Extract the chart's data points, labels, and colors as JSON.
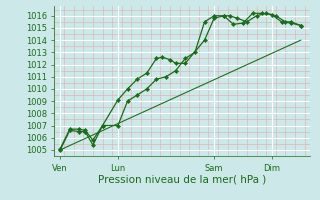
{
  "xlabel": "Pression niveau de la mer( hPa )",
  "bg_color": "#cce8e8",
  "plot_bg_color": "#cce8e8",
  "major_grid_color": "#ffffff",
  "minor_grid_color": "#ddb8b8",
  "line_color": "#1a6b1a",
  "ylim": [
    1004.5,
    1016.8
  ],
  "yticks": [
    1005,
    1006,
    1007,
    1008,
    1009,
    1010,
    1011,
    1012,
    1013,
    1014,
    1015,
    1016
  ],
  "xtick_labels": [
    "Ven",
    "Lun",
    "Sam",
    "Dim"
  ],
  "xtick_positions": [
    0,
    3,
    8,
    11
  ],
  "xlim": [
    -0.3,
    13.0
  ],
  "series1_x": [
    0,
    0.5,
    1.0,
    1.3,
    1.7,
    2.2,
    3.0,
    3.5,
    4.0,
    4.5,
    5.0,
    5.3,
    5.7,
    6.0,
    6.5,
    7.5,
    8.0,
    8.5,
    8.8,
    9.2,
    9.7,
    10.2,
    10.7,
    11.2,
    11.7,
    12.0,
    12.5
  ],
  "series1_y": [
    1005.1,
    1006.7,
    1006.7,
    1006.6,
    1005.8,
    1007.0,
    1009.1,
    1010.0,
    1010.8,
    1011.3,
    1012.5,
    1012.6,
    1012.4,
    1012.1,
    1012.1,
    1014.0,
    1015.8,
    1016.0,
    1016.0,
    1015.8,
    1015.5,
    1016.0,
    1016.2,
    1016.0,
    1015.5,
    1015.5,
    1015.2
  ],
  "series2_x": [
    0,
    0.5,
    1.0,
    1.3,
    1.7,
    2.2,
    3.0,
    3.5,
    4.0,
    4.5,
    5.0,
    5.5,
    6.0,
    6.5,
    7.0,
    7.5,
    8.0,
    8.5,
    9.0,
    9.5,
    10.0,
    10.5,
    11.0,
    11.5,
    12.0,
    12.5
  ],
  "series2_y": [
    1005.0,
    1006.6,
    1006.5,
    1006.5,
    1005.4,
    1007.0,
    1007.0,
    1009.0,
    1009.5,
    1010.0,
    1010.8,
    1011.0,
    1011.5,
    1012.5,
    1013.0,
    1015.5,
    1016.0,
    1016.0,
    1015.3,
    1015.4,
    1016.2,
    1016.2,
    1016.1,
    1015.5,
    1015.4,
    1015.2
  ],
  "series3_x": [
    0,
    12.5
  ],
  "series3_y": [
    1005.0,
    1014.0
  ],
  "marker_size": 2.2,
  "linewidth": 0.9,
  "xlabel_fontsize": 7.5,
  "tick_fontsize": 6.0
}
